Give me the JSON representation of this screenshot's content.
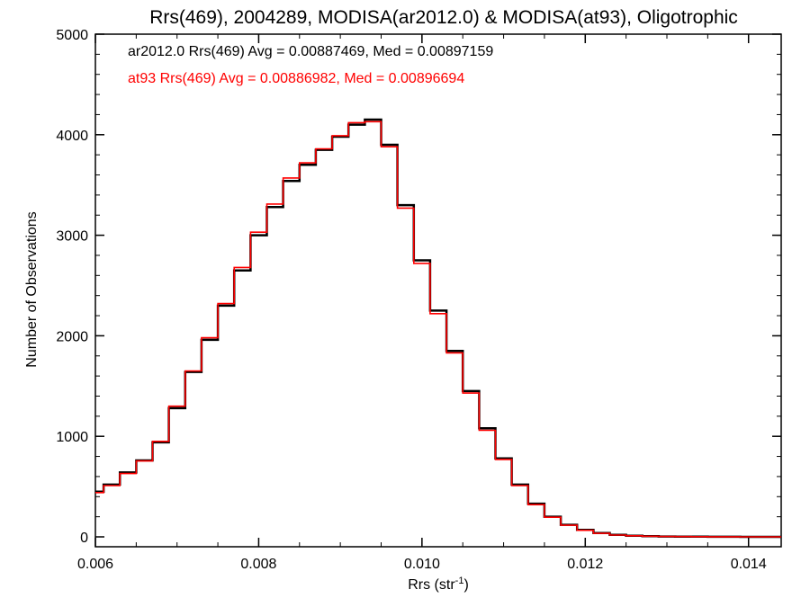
{
  "chart_data": {
    "type": "line",
    "title": "Rrs(469), 2004289, MODISA(ar2012.0) & MODISA(at93), Oligotrophic",
    "xlabel_main": "Rrs (str",
    "xlabel_sup": "-1",
    "xlabel_end": ")",
    "ylabel": "Number of Observations",
    "xlim": [
      0.006,
      0.0144
    ],
    "ylim": [
      0,
      5000
    ],
    "xticks": [
      0.006,
      0.008,
      0.01,
      0.012,
      0.014
    ],
    "xtick_labels": [
      "0.006",
      "0.008",
      "0.010",
      "0.012",
      "0.014"
    ],
    "yticks": [
      0,
      1000,
      2000,
      3000,
      4000,
      5000
    ],
    "ytick_labels": [
      "0",
      "1000",
      "2000",
      "3000",
      "4000",
      "5000"
    ],
    "grid": false,
    "annotations": [
      {
        "text": "ar2012.0 Rrs(469) Avg = 0.00887469, Med = 0.00897159",
        "color": "#000000"
      },
      {
        "text": "at93 Rrs(469) Avg = 0.00886982, Med = 0.00896694",
        "color": "#ff0000"
      }
    ],
    "x": [
      0.006,
      0.0062,
      0.0064,
      0.0066,
      0.0068,
      0.007,
      0.0072,
      0.0074,
      0.0076,
      0.0078,
      0.008,
      0.0082,
      0.0084,
      0.0086,
      0.0088,
      0.009,
      0.0092,
      0.0094,
      0.0096,
      0.0098,
      0.01,
      0.0102,
      0.0104,
      0.0106,
      0.0108,
      0.011,
      0.0112,
      0.0114,
      0.0116,
      0.0118,
      0.012,
      0.0122,
      0.0124,
      0.0126,
      0.0128,
      0.013,
      0.0132,
      0.0134,
      0.0136,
      0.0138,
      0.014,
      0.0142,
      0.0144
    ],
    "series": [
      {
        "name": "ar2012.0",
        "color": "#000000",
        "values": [
          450,
          520,
          640,
          760,
          940,
          1280,
          1640,
          1960,
          2300,
          2650,
          3000,
          3280,
          3540,
          3700,
          3850,
          3980,
          4100,
          4150,
          3900,
          3300,
          2750,
          2250,
          1850,
          1450,
          1080,
          780,
          520,
          330,
          200,
          120,
          70,
          38,
          20,
          12,
          7,
          4,
          3,
          2,
          1,
          1,
          0,
          0,
          0
        ]
      },
      {
        "name": "at93",
        "color": "#ff0000",
        "values": [
          440,
          510,
          630,
          755,
          950,
          1300,
          1650,
          1980,
          2320,
          2680,
          3030,
          3310,
          3570,
          3720,
          3860,
          3990,
          4120,
          4130,
          3880,
          3270,
          2720,
          2220,
          1830,
          1430,
          1060,
          770,
          510,
          320,
          195,
          115,
          65,
          35,
          18,
          11,
          6,
          4,
          3,
          2,
          1,
          1,
          0,
          0,
          0
        ]
      }
    ]
  }
}
